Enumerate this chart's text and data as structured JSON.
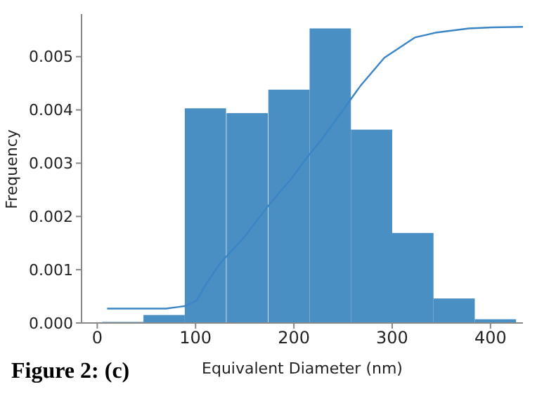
{
  "chart_data": {
    "type": "histogram",
    "xlabel": "Equivalent Diameter (nm)",
    "ylabel": "Frequency",
    "annotations": [
      "Figure 2: (c)"
    ],
    "bins": [
      5,
      47,
      89,
      131,
      174,
      216,
      258,
      300,
      342,
      384,
      426
    ],
    "values": [
      2e-05,
      0.00015,
      0.00403,
      0.00394,
      0.00438,
      0.00553,
      0.00363,
      0.00169,
      0.00046,
      7e-05
    ],
    "color": "#4a8fc4",
    "series": [
      {
        "type": "line",
        "color": "#3a85c6",
        "x": [
          10,
          70,
          90,
          101,
          111,
          125,
          149,
          173,
          197,
          211,
          230,
          249,
          268,
          292,
          323,
          344,
          378,
          401,
          433
        ],
        "values": [
          0.00027,
          0.00027,
          0.00032,
          0.00042,
          0.00074,
          0.00112,
          0.0016,
          0.00218,
          0.0027,
          0.00305,
          0.00349,
          0.00397,
          0.00446,
          0.00498,
          0.00536,
          0.00545,
          0.00553,
          0.00555,
          0.00556
        ]
      }
    ],
    "xlim": [
      -16,
      433
    ],
    "xticks": [
      0,
      100,
      200,
      300,
      400
    ],
    "ylim": [
      0,
      0.0058
    ],
    "yticks": [
      {
        "value": 0,
        "label": "0.000"
      },
      {
        "value": 0.001,
        "label": "0.001"
      },
      {
        "value": 0.002,
        "label": "0.002"
      },
      {
        "value": 0.003,
        "label": "0.003"
      },
      {
        "value": 0.004,
        "label": "0.004"
      },
      {
        "value": 0.005,
        "label": "0.005"
      }
    ],
    "grid": false,
    "legend": false
  }
}
